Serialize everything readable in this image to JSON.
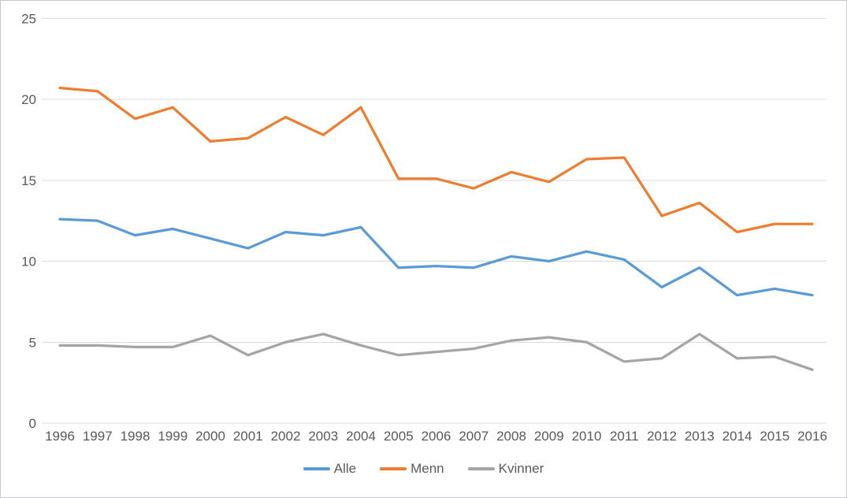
{
  "chart_data": {
    "type": "line",
    "title": "",
    "xlabel": "",
    "ylabel": "",
    "categories": [
      "1996",
      "1997",
      "1998",
      "1999",
      "2000",
      "2001",
      "2002",
      "2003",
      "2004",
      "2005",
      "2006",
      "2007",
      "2008",
      "2009",
      "2010",
      "2011",
      "2012",
      "2013",
      "2014",
      "2015",
      "2016"
    ],
    "series": [
      {
        "name": "Alle",
        "color": "#5B9BD5",
        "values": [
          12.6,
          12.5,
          11.6,
          12.0,
          11.4,
          10.8,
          11.8,
          11.6,
          12.1,
          9.6,
          9.7,
          9.6,
          10.3,
          10.0,
          10.6,
          10.1,
          8.4,
          9.6,
          7.9,
          8.3,
          7.9
        ]
      },
      {
        "name": "Menn",
        "color": "#ED7D31",
        "values": [
          20.7,
          20.5,
          18.8,
          19.5,
          17.4,
          17.6,
          18.9,
          17.8,
          19.5,
          15.1,
          15.1,
          14.5,
          15.5,
          14.9,
          16.3,
          16.4,
          12.8,
          13.6,
          11.8,
          12.3,
          12.3
        ]
      },
      {
        "name": "Kvinner",
        "color": "#A5A5A5",
        "values": [
          4.8,
          4.8,
          4.7,
          4.7,
          5.4,
          4.2,
          5.0,
          5.5,
          4.8,
          4.2,
          4.4,
          4.6,
          5.1,
          5.3,
          5.0,
          3.8,
          4.0,
          5.5,
          4.0,
          4.1,
          3.3
        ]
      }
    ],
    "ylim": [
      0,
      25
    ],
    "yticks": [
      0,
      5,
      10,
      15,
      20,
      25
    ],
    "grid": true,
    "legend_position": "bottom"
  },
  "style": {
    "background_color": "#ffffff",
    "border_color": "#c6cace",
    "grid_color": "#d9d9d9",
    "axis_text_color": "#595959",
    "line_width": 3.25,
    "axis_font_size": 17
  }
}
